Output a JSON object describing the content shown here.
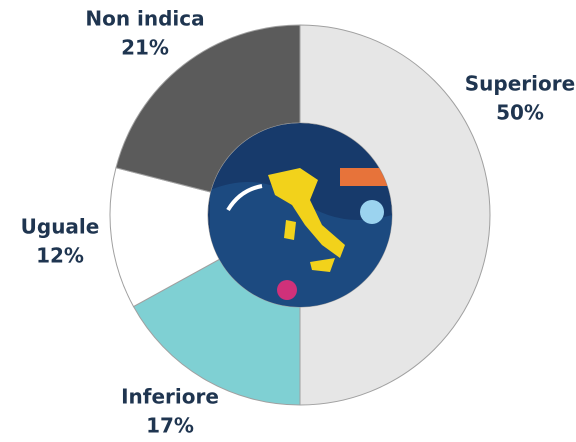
{
  "chart_data": {
    "type": "pie",
    "categories": [
      "Superiore",
      "Inferiore",
      "Uguale",
      "Non indica"
    ],
    "values": [
      50,
      17,
      12,
      21
    ],
    "value_labels": [
      "50%",
      "17%",
      "12%",
      "21%"
    ],
    "colors": [
      "#e6e6e6",
      "#7fd0d3",
      "#ffffff",
      "#5b5b5b"
    ]
  }
}
